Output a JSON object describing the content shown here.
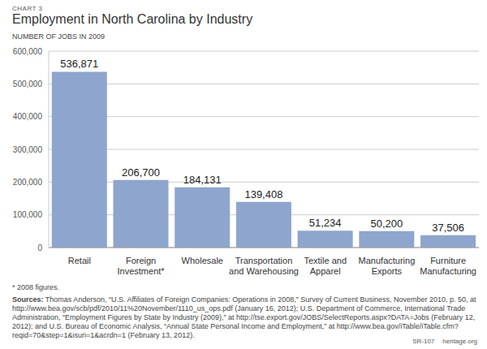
{
  "chart_data": {
    "type": "bar",
    "chart_number": "CHART 3",
    "title": "Employment in North Carolina by Industry",
    "y_label": "NUMBER OF JOBS IN 2009",
    "categories": [
      "Retail",
      "Foreign Investment*",
      "Wholesale",
      "Transportation and Warehousing",
      "Textile and Apparel",
      "Manufacturing Exports",
      "Furniture Manufacturing"
    ],
    "values": [
      536871,
      206700,
      184131,
      139408,
      51234,
      50200,
      37506
    ],
    "value_labels": [
      "536,871",
      "206,700",
      "184,131",
      "139,408",
      "51,234",
      "50,200",
      "37,506"
    ],
    "data_labels": true,
    "color": "#8ea5cd",
    "ylim": [
      0,
      600000
    ],
    "yticks": [
      0,
      {
        "value": 100000,
        "label": "100,000"
      },
      {
        "value": 200000,
        "label": "200,000"
      },
      {
        "value": 300000,
        "label": "300,000"
      },
      {
        "value": 400000,
        "label": "400,000"
      },
      {
        "value": 500000,
        "label": "500,000"
      },
      {
        "value": 600000,
        "label": "600,000"
      }
    ],
    "grid": true,
    "footnote": "* 2008 figures.",
    "sources_label": "Sources:",
    "sources": "Thomas Anderson, “U.S. Affiliates of Foreign Companies: Operations in 2008,” Survey of Current Business, November 2010, p. 50, at http://www.bea.gov/scb/pdf/2010/11%20November/1110_us_ops.pdf (January 16, 2012); U.S. Department of Commerce, International Trade Administration, “Employment Figures by State by Industry (2009),” at http://tse.export.gov/JOBS/SelectReports.aspx?DATA=Jobs (February 12, 2012); and U.S. Bureau of Economic Analysis, “Annual State Personal Income and Employment,” at http://www.bea.gov/iTable/iTable.cfm?reqid=70&step=1&isuri=1&acrdn=1 (February 13, 2012).",
    "report": "SR-107",
    "site": "heritage.org"
  }
}
